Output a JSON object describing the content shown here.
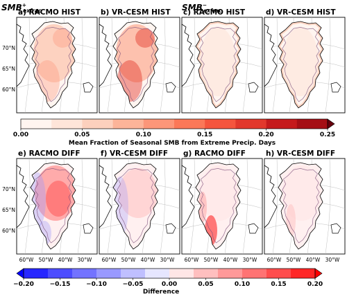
{
  "chart_data": {
    "type": "heatmap",
    "row_labels": {
      "top_left": {
        "base": "SMB",
        "sup": "+",
        "sub": "exfrac"
      },
      "top_right": {
        "base": "SMB",
        "sup": "−",
        "sub": "exfrac"
      }
    },
    "panels": [
      {
        "id": "a",
        "title": "a) RACMO HIST",
        "row": 0,
        "col": 0,
        "kind": "hist",
        "pattern": "plus"
      },
      {
        "id": "b",
        "title": "b) VR-CESM HIST",
        "row": 0,
        "col": 1,
        "kind": "hist",
        "pattern": "plus_strong"
      },
      {
        "id": "c",
        "title": "c) RACMO HIST",
        "row": 0,
        "col": 2,
        "kind": "hist",
        "pattern": "minus"
      },
      {
        "id": "d",
        "title": "d) VR-CESM HIST",
        "row": 0,
        "col": 3,
        "kind": "hist",
        "pattern": "minus"
      },
      {
        "id": "e",
        "title": "e) RACMO DIFF",
        "row": 1,
        "col": 0,
        "kind": "diff",
        "pattern": "diff_plus"
      },
      {
        "id": "f",
        "title": "f) VR-CESM DIFF",
        "row": 1,
        "col": 1,
        "kind": "diff",
        "pattern": "diff_plus_weak"
      },
      {
        "id": "g",
        "title": "g) RACMO DIFF",
        "row": 1,
        "col": 2,
        "kind": "diff",
        "pattern": "diff_minus"
      },
      {
        "id": "h",
        "title": "h) VR-CESM DIFF",
        "row": 1,
        "col": 3,
        "kind": "diff",
        "pattern": "diff_minus_weak"
      }
    ],
    "lat_labels": [
      "70°N",
      "65°N",
      "60°N"
    ],
    "lon_labels": [
      "60°W",
      "50°W",
      "40°W",
      "30°W"
    ],
    "colorbars": [
      {
        "id": "hist",
        "label": "Mean Fraction of Seasonal SMB from Extreme Precip. Days",
        "ticks": [
          "0.00",
          "0.05",
          "0.10",
          "0.15",
          "0.20",
          "0.25"
        ],
        "range": [
          0,
          0.25
        ],
        "extend": "max",
        "colors": [
          "#fff5f0",
          "#fee5d9",
          "#fdd0bd",
          "#fcb499",
          "#fc9679",
          "#fb7858",
          "#f5553d",
          "#e2382c",
          "#c51a1c",
          "#a50f15",
          "#67000d"
        ]
      },
      {
        "id": "diff",
        "label": "Difference",
        "ticks": [
          "−0.20",
          "−0.15",
          "−0.10",
          "−0.05",
          "0.00",
          "0.05",
          "0.10",
          "0.15",
          "0.20"
        ],
        "range": [
          -0.2,
          0.2
        ],
        "extend": "both",
        "colors": [
          "#0000ff",
          "#2626ff",
          "#4d4dff",
          "#7373ff",
          "#9999ff",
          "#bfbfff",
          "#e6e6ff",
          "#ffe6e6",
          "#ffbfbf",
          "#ff9999",
          "#ff7373",
          "#ff4d4d",
          "#ff2626",
          "#ff0000"
        ]
      }
    ]
  }
}
